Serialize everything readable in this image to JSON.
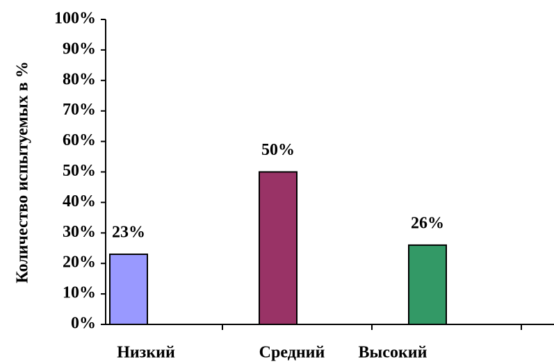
{
  "chart_data": {
    "type": "bar",
    "ylabel": "Количество испытуемых в %",
    "categories": [
      "Низкий",
      "Средний",
      "Высокий"
    ],
    "values": [
      23,
      50,
      26
    ],
    "value_labels": [
      "23%",
      "50%",
      "26%"
    ],
    "colors": [
      "#9999ff",
      "#993366",
      "#339966"
    ],
    "ylim": [
      0,
      100
    ],
    "yticks": [
      {
        "value": 0,
        "label": "0%"
      },
      {
        "value": 10,
        "label": "10%"
      },
      {
        "value": 20,
        "label": "20%"
      },
      {
        "value": 30,
        "label": "30%"
      },
      {
        "value": 40,
        "label": "40%"
      },
      {
        "value": 50,
        "label": "50%"
      },
      {
        "value": 60,
        "label": "60%"
      },
      {
        "value": 70,
        "label": "70%"
      },
      {
        "value": 80,
        "label": "80%"
      },
      {
        "value": 90,
        "label": "90%"
      },
      {
        "value": 100,
        "label": "100%"
      }
    ],
    "grid": false
  }
}
